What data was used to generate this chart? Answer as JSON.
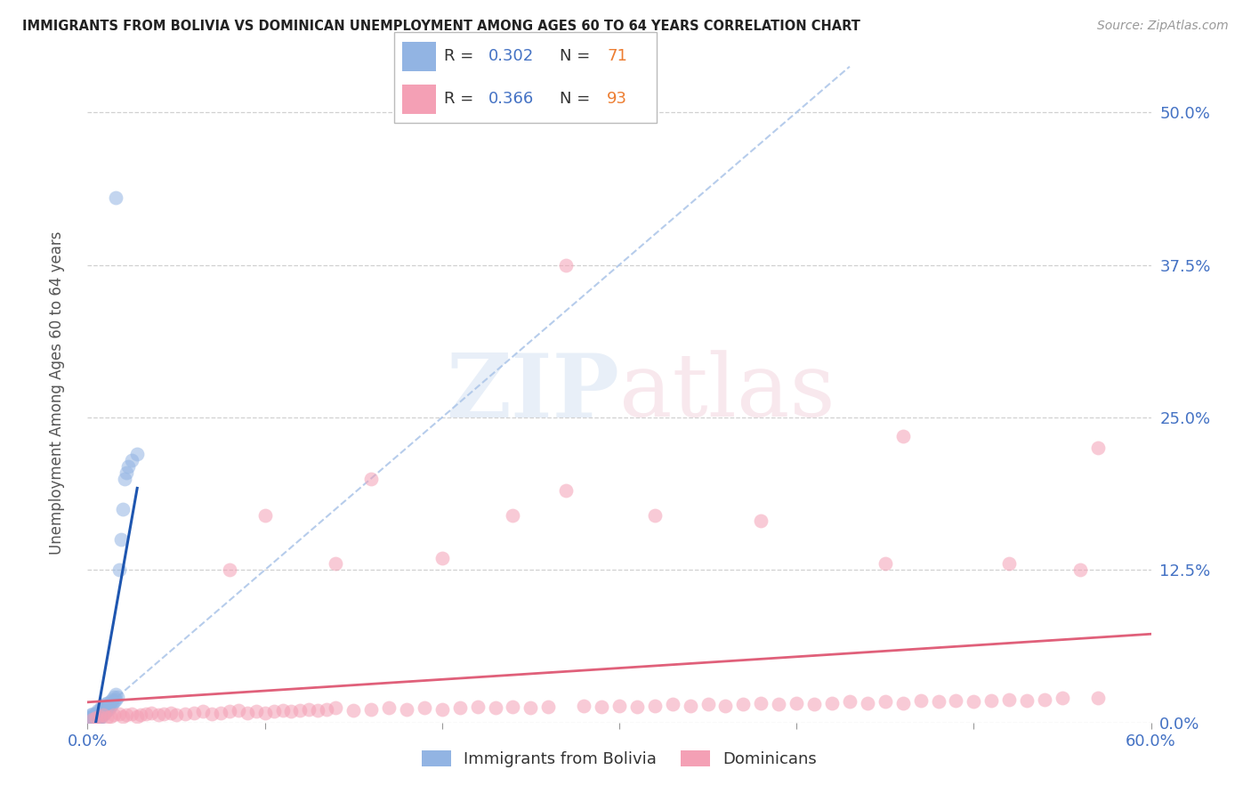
{
  "title": "IMMIGRANTS FROM BOLIVIA VS DOMINICAN UNEMPLOYMENT AMONG AGES 60 TO 64 YEARS CORRELATION CHART",
  "source": "Source: ZipAtlas.com",
  "ylabel": "Unemployment Among Ages 60 to 64 years",
  "xlim": [
    0.0,
    0.6
  ],
  "ylim": [
    0.0,
    0.54
  ],
  "yticks": [
    0.0,
    0.125,
    0.25,
    0.375,
    0.5
  ],
  "ytick_labels": [
    "0.0%",
    "12.5%",
    "25.0%",
    "37.5%",
    "50.0%"
  ],
  "xtick_labels": [
    "0.0%",
    "",
    "",
    "",
    "",
    "",
    "60.0%"
  ],
  "bolivia_R": 0.302,
  "bolivia_N": 71,
  "dominican_R": 0.366,
  "dominican_N": 93,
  "bolivia_color": "#92b4e3",
  "dominican_color": "#f4a0b5",
  "bolivia_trend_color": "#1e56b0",
  "dominican_trend_color": "#e0607a",
  "bolivia_dashed_color": "#aac4e8",
  "legend_R_color": "#4472c4",
  "legend_N_color": "#ed7d31",
  "bolivia_x": [
    0.001,
    0.001,
    0.001,
    0.001,
    0.002,
    0.002,
    0.002,
    0.002,
    0.002,
    0.002,
    0.002,
    0.003,
    0.003,
    0.003,
    0.003,
    0.003,
    0.003,
    0.003,
    0.004,
    0.004,
    0.004,
    0.004,
    0.004,
    0.005,
    0.005,
    0.005,
    0.005,
    0.005,
    0.006,
    0.006,
    0.006,
    0.006,
    0.006,
    0.007,
    0.007,
    0.007,
    0.007,
    0.008,
    0.008,
    0.008,
    0.008,
    0.009,
    0.009,
    0.009,
    0.01,
    0.01,
    0.01,
    0.01,
    0.011,
    0.011,
    0.011,
    0.012,
    0.012,
    0.013,
    0.013,
    0.014,
    0.014,
    0.015,
    0.015,
    0.016,
    0.016,
    0.017,
    0.018,
    0.019,
    0.02,
    0.021,
    0.022,
    0.023,
    0.025,
    0.028,
    0.016
  ],
  "bolivia_y": [
    0.0,
    0.002,
    0.003,
    0.004,
    0.0,
    0.001,
    0.002,
    0.003,
    0.004,
    0.005,
    0.006,
    0.0,
    0.001,
    0.002,
    0.003,
    0.004,
    0.005,
    0.007,
    0.002,
    0.003,
    0.004,
    0.005,
    0.006,
    0.002,
    0.003,
    0.004,
    0.006,
    0.008,
    0.003,
    0.004,
    0.005,
    0.007,
    0.01,
    0.004,
    0.005,
    0.007,
    0.01,
    0.005,
    0.007,
    0.01,
    0.013,
    0.007,
    0.01,
    0.013,
    0.008,
    0.01,
    0.013,
    0.015,
    0.01,
    0.013,
    0.016,
    0.011,
    0.014,
    0.013,
    0.017,
    0.015,
    0.019,
    0.017,
    0.021,
    0.019,
    0.023,
    0.021,
    0.125,
    0.15,
    0.175,
    0.2,
    0.205,
    0.21,
    0.215,
    0.22,
    0.43
  ],
  "dominican_x": [
    0.003,
    0.005,
    0.007,
    0.009,
    0.011,
    0.013,
    0.015,
    0.018,
    0.02,
    0.022,
    0.025,
    0.028,
    0.03,
    0.033,
    0.036,
    0.04,
    0.043,
    0.047,
    0.05,
    0.055,
    0.06,
    0.065,
    0.07,
    0.075,
    0.08,
    0.085,
    0.09,
    0.095,
    0.1,
    0.105,
    0.11,
    0.115,
    0.12,
    0.125,
    0.13,
    0.135,
    0.14,
    0.15,
    0.16,
    0.17,
    0.18,
    0.19,
    0.2,
    0.21,
    0.22,
    0.23,
    0.24,
    0.25,
    0.26,
    0.27,
    0.28,
    0.29,
    0.3,
    0.31,
    0.32,
    0.33,
    0.34,
    0.35,
    0.36,
    0.37,
    0.38,
    0.39,
    0.4,
    0.41,
    0.42,
    0.43,
    0.44,
    0.45,
    0.46,
    0.47,
    0.48,
    0.49,
    0.5,
    0.51,
    0.52,
    0.53,
    0.54,
    0.55,
    0.56,
    0.57,
    0.27,
    0.46,
    0.57,
    0.1,
    0.16,
    0.24,
    0.32,
    0.38,
    0.45,
    0.52,
    0.08,
    0.14,
    0.2
  ],
  "dominican_y": [
    0.003,
    0.004,
    0.005,
    0.006,
    0.004,
    0.005,
    0.006,
    0.007,
    0.005,
    0.006,
    0.007,
    0.005,
    0.006,
    0.007,
    0.008,
    0.006,
    0.007,
    0.008,
    0.006,
    0.007,
    0.008,
    0.009,
    0.007,
    0.008,
    0.009,
    0.01,
    0.008,
    0.009,
    0.008,
    0.009,
    0.01,
    0.009,
    0.01,
    0.011,
    0.01,
    0.011,
    0.012,
    0.01,
    0.011,
    0.012,
    0.011,
    0.012,
    0.011,
    0.012,
    0.013,
    0.012,
    0.013,
    0.012,
    0.013,
    0.19,
    0.014,
    0.013,
    0.014,
    0.013,
    0.014,
    0.015,
    0.014,
    0.015,
    0.014,
    0.015,
    0.016,
    0.015,
    0.016,
    0.015,
    0.016,
    0.017,
    0.016,
    0.017,
    0.016,
    0.018,
    0.017,
    0.018,
    0.017,
    0.018,
    0.019,
    0.018,
    0.019,
    0.02,
    0.125,
    0.02,
    0.375,
    0.235,
    0.225,
    0.17,
    0.2,
    0.17,
    0.17,
    0.165,
    0.13,
    0.13,
    0.125,
    0.13,
    0.135
  ]
}
